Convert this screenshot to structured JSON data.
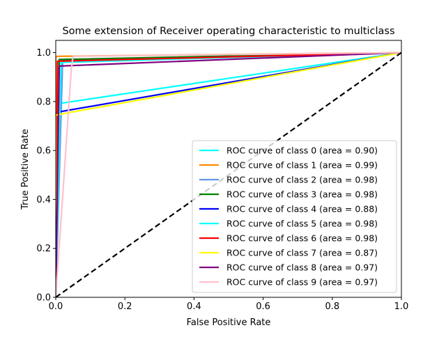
{
  "chart_data": {
    "type": "line",
    "title": "Some extension of Receiver operating characteristic to multiclass",
    "xlabel": "False Positive Rate",
    "ylabel": "True Positive Rate",
    "xlim": [
      0.0,
      1.0
    ],
    "ylim": [
      0.0,
      1.05
    ],
    "x_ticks": [
      "0.0",
      "0.2",
      "0.4",
      "0.6",
      "0.8",
      "1.0"
    ],
    "y_ticks": [
      "0.0",
      "0.2",
      "0.4",
      "0.6",
      "0.8",
      "1.0"
    ],
    "grid": false,
    "legend_position": "lower-right",
    "series": [
      {
        "name": "ROC curve of class 0 (area = 0.90)",
        "color": "#00ffff",
        "x": [
          0,
          0,
          1
        ],
        "y": [
          0,
          0.79,
          1
        ]
      },
      {
        "name": "ROC curve of class 1 (area = 0.99)",
        "color": "#ff8c00",
        "x": [
          0,
          0,
          0.005,
          1
        ],
        "y": [
          0,
          0.982,
          0.985,
          1
        ]
      },
      {
        "name": "ROC curve of class 2 (area = 0.98)",
        "color": "#6495ed",
        "x": [
          0,
          0.02,
          1
        ],
        "y": [
          0,
          0.97,
          1
        ]
      },
      {
        "name": "ROC curve of class 3 (area = 0.98)",
        "color": "#008000",
        "x": [
          0,
          0.01,
          1
        ],
        "y": [
          0,
          0.972,
          1
        ]
      },
      {
        "name": "ROC curve of class 4 (area = 0.88)",
        "color": "#0000ff",
        "x": [
          0,
          0,
          0.01,
          1
        ],
        "y": [
          0,
          0.755,
          0.758,
          1
        ]
      },
      {
        "name": "ROC curve of class 5 (area = 0.98)",
        "color": "#00ffff",
        "x": [
          0,
          0.015,
          1
        ],
        "y": [
          0,
          0.96,
          1
        ]
      },
      {
        "name": "ROC curve of class 6 (area = 0.98)",
        "color": "#ff0000",
        "x": [
          0,
          0.005,
          1
        ],
        "y": [
          0,
          0.965,
          1
        ]
      },
      {
        "name": "ROC curve of class 7 (area = 0.87)",
        "color": "#ffff00",
        "x": [
          0,
          0,
          1
        ],
        "y": [
          0,
          0.745,
          1
        ]
      },
      {
        "name": "ROC curve of class 8 (area = 0.97)",
        "color": "#800080",
        "x": [
          0,
          0.01,
          1
        ],
        "y": [
          0,
          0.945,
          1
        ]
      },
      {
        "name": "ROC curve of class 9 (area = 0.97)",
        "color": "#ffc0cb",
        "x": [
          0,
          0.045,
          0.05,
          1
        ],
        "y": [
          0,
          0.93,
          0.985,
          1
        ]
      }
    ],
    "reference_line": {
      "color": "#000000",
      "style": "dashed",
      "x": [
        0,
        1
      ],
      "y": [
        0,
        1
      ]
    }
  }
}
